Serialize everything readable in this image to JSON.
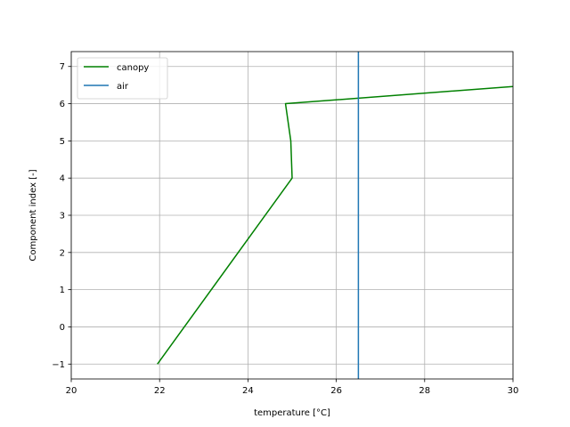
{
  "chart_data": {
    "type": "line",
    "title": "",
    "xlabel": "temperature [°C]",
    "ylabel": "Component index [-]",
    "xlim": [
      20,
      30
    ],
    "ylim": [
      -1.4,
      7.4
    ],
    "xticks": [
      20,
      22,
      24,
      26,
      28,
      30
    ],
    "xtick_labels": [
      "20",
      "22",
      "24",
      "26",
      "28",
      "30"
    ],
    "yticks": [
      -1,
      0,
      1,
      2,
      3,
      4,
      5,
      6,
      7
    ],
    "ytick_labels": [
      "−1",
      "0",
      "1",
      "2",
      "3",
      "4",
      "5",
      "6",
      "7"
    ],
    "grid": true,
    "legend_position": "upper-left",
    "series": [
      {
        "name": "canopy",
        "color": "#008000",
        "orientation": "line",
        "x": [
          21.95,
          25.0,
          24.97,
          24.85,
          36.0
        ],
        "y": [
          -1,
          4,
          5,
          6,
          7
        ]
      },
      {
        "name": "air",
        "color": "#1f77b4",
        "orientation": "vertical",
        "x": [
          26.5,
          26.5
        ],
        "y": [
          -1.4,
          7.4
        ]
      }
    ]
  }
}
